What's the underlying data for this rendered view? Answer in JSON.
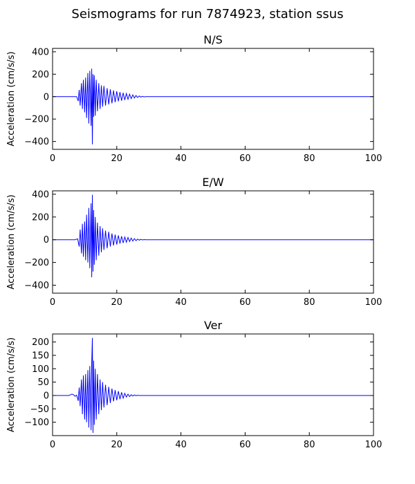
{
  "figure": {
    "title": "Seismograms for run 7874923, station ssus"
  },
  "style": {
    "line_color": "#0000ff",
    "axis_color": "#000000",
    "background": "#ffffff"
  },
  "chart_data": [
    {
      "type": "line",
      "title": "N/S",
      "xlabel": "",
      "ylabel": "Acceleration (cm/s/s)",
      "xlim": [
        0,
        100
      ],
      "ylim": [
        -470,
        430
      ],
      "xticks": [
        0,
        20,
        40,
        60,
        80,
        100
      ],
      "yticks": [
        -400,
        -200,
        0,
        200,
        400
      ],
      "grid": false,
      "series": [
        {
          "values_description": "",
          "x": [
            0,
            7.5,
            8.0,
            8.3,
            8.6,
            9.0,
            9.3,
            9.6,
            10.0,
            10.3,
            10.6,
            11.0,
            11.3,
            11.6,
            12.0,
            12.2,
            12.4,
            12.6,
            12.8,
            13.0,
            13.3,
            13.6,
            14.0,
            14.4,
            14.8,
            15.2,
            15.6,
            16.0,
            16.5,
            17.0,
            17.5,
            18.0,
            18.5,
            19.0,
            19.5,
            20.0,
            20.5,
            21.0,
            21.5,
            22.0,
            22.5,
            23.0,
            23.5,
            24.0,
            24.5,
            25.0,
            25.5,
            26.0,
            26.5,
            27.0,
            27.5,
            28.0,
            28.5,
            29.0,
            100
          ],
          "y": [
            0,
            0,
            -40,
            60,
            -80,
            120,
            -110,
            150,
            -140,
            170,
            -190,
            210,
            -240,
            230,
            -260,
            250,
            -425,
            200,
            -180,
            190,
            -170,
            150,
            -130,
            120,
            -110,
            100,
            -90,
            95,
            -80,
            75,
            -70,
            65,
            -60,
            55,
            -50,
            48,
            -42,
            40,
            -36,
            34,
            -30,
            28,
            -24,
            22,
            -18,
            16,
            -12,
            10,
            -8,
            6,
            -4,
            3,
            -2,
            0,
            0
          ]
        }
      ]
    },
    {
      "type": "line",
      "title": "E/W",
      "xlabel": "",
      "ylabel": "Acceleration (cm/s/s)",
      "xlim": [
        0,
        100
      ],
      "ylim": [
        -470,
        430
      ],
      "xticks": [
        0,
        20,
        40,
        60,
        80,
        100
      ],
      "yticks": [
        -400,
        -200,
        0,
        200,
        400
      ],
      "grid": false,
      "series": [
        {
          "x": [
            0,
            7.0,
            7.8,
            8.3,
            8.6,
            9.0,
            9.3,
            9.6,
            10.0,
            10.3,
            10.6,
            11.0,
            11.3,
            11.6,
            12.0,
            12.2,
            12.4,
            12.6,
            12.8,
            13.0,
            13.3,
            13.6,
            14.0,
            14.4,
            14.8,
            15.2,
            15.6,
            16.0,
            16.5,
            17.0,
            17.5,
            18.0,
            18.5,
            19.0,
            19.5,
            20.0,
            20.5,
            21.0,
            21.5,
            22.0,
            22.5,
            23.0,
            23.5,
            24.0,
            24.5,
            25.0,
            25.5,
            26.0,
            26.5,
            27.0,
            27.5,
            28.0,
            28.5,
            29.0,
            100
          ],
          "y": [
            0,
            0,
            8,
            -60,
            90,
            -120,
            140,
            -150,
            160,
            -180,
            220,
            -200,
            280,
            -250,
            320,
            -330,
            395,
            -280,
            260,
            -220,
            200,
            -180,
            150,
            -140,
            120,
            -110,
            100,
            -90,
            80,
            -75,
            70,
            -60,
            55,
            -50,
            45,
            -42,
            38,
            -34,
            30,
            -28,
            24,
            -22,
            20,
            -16,
            14,
            -12,
            10,
            -8,
            6,
            -4,
            3,
            -2,
            1,
            0,
            0
          ]
        }
      ]
    },
    {
      "type": "line",
      "title": "Ver",
      "xlabel": "",
      "ylabel": "Acceleration (cm/s/s)",
      "xlim": [
        0,
        100
      ],
      "ylim": [
        -150,
        230
      ],
      "xticks": [
        0,
        20,
        40,
        60,
        80,
        100
      ],
      "yticks": [
        -100,
        -50,
        0,
        50,
        100,
        150,
        200
      ],
      "grid": false,
      "series": [
        {
          "x": [
            0,
            5.0,
            5.5,
            6.0,
            6.3,
            6.6,
            7.0,
            7.5,
            8.0,
            8.3,
            8.6,
            9.0,
            9.3,
            9.6,
            10.0,
            10.3,
            10.6,
            11.0,
            11.3,
            11.6,
            12.0,
            12.2,
            12.4,
            12.6,
            12.8,
            13.0,
            13.3,
            13.6,
            14.0,
            14.4,
            14.8,
            15.2,
            15.6,
            16.0,
            16.5,
            17.0,
            17.5,
            18.0,
            18.5,
            19.0,
            19.5,
            20.0,
            20.5,
            21.0,
            21.5,
            22.0,
            22.5,
            23.0,
            23.5,
            24.0,
            24.5,
            25.0,
            25.5,
            26.0,
            26.5,
            27.0,
            27.5,
            28.0,
            28.5,
            29.0,
            100
          ],
          "y": [
            0,
            0,
            2,
            5,
            4,
            2,
            -3,
            1,
            -20,
            30,
            -40,
            60,
            -70,
            75,
            -90,
            80,
            -100,
            95,
            -120,
            110,
            -130,
            120,
            215,
            -140,
            130,
            -110,
            100,
            -90,
            80,
            -70,
            60,
            -55,
            50,
            -45,
            40,
            -36,
            32,
            -28,
            26,
            -22,
            20,
            -18,
            16,
            -14,
            12,
            -10,
            8,
            -6,
            5,
            -4,
            3,
            -2,
            2,
            -1,
            1,
            0,
            0,
            0,
            0,
            0,
            0
          ]
        }
      ]
    }
  ]
}
